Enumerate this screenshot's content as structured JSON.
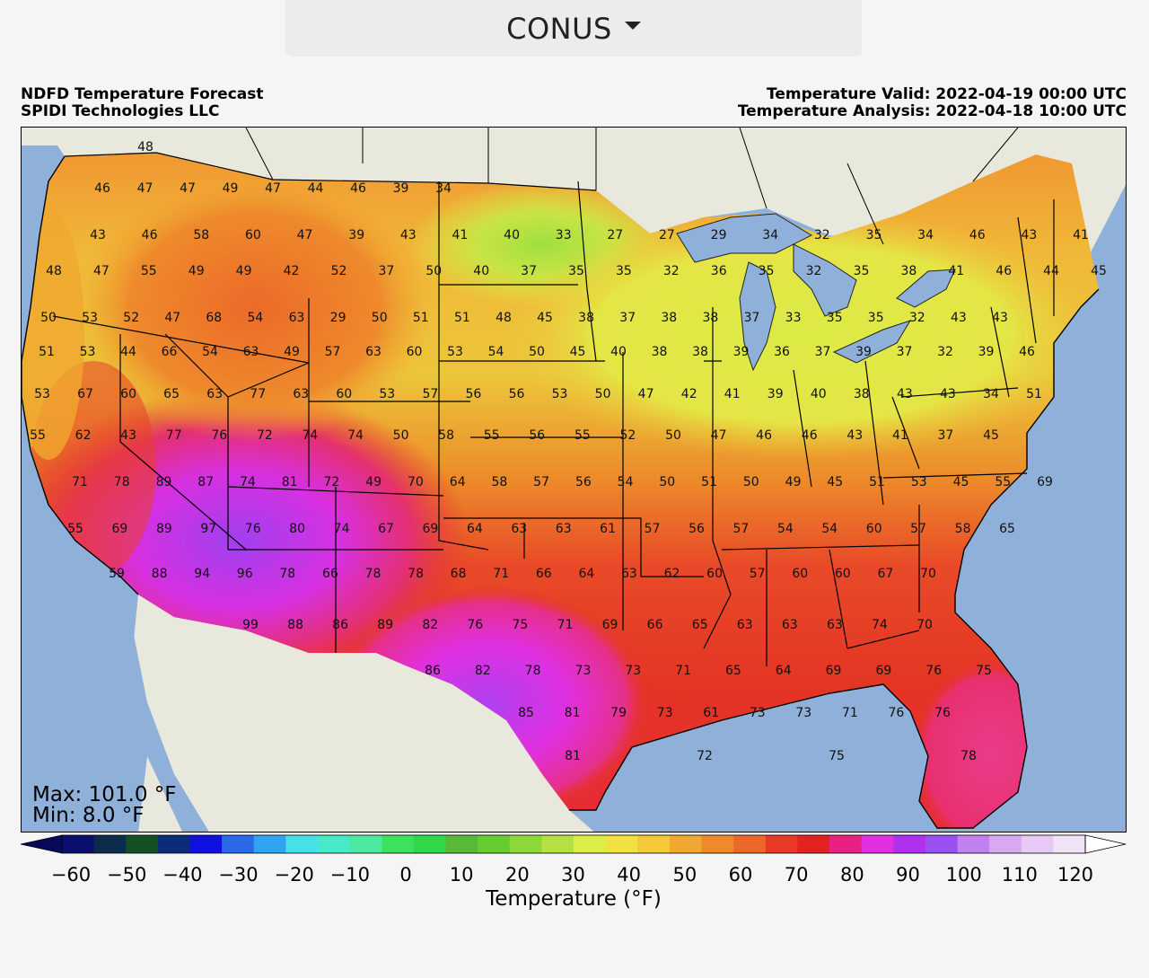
{
  "region_selector": {
    "value": "CONUS",
    "icon": "chevron-down-icon"
  },
  "header": {
    "left_line1": "NDFD Temperature Forecast",
    "left_line2": "SPIDI Technologies LLC",
    "right_line1": "Temperature Valid: 2022-04-19 00:00 UTC",
    "right_line2": "Temperature Analysis: 2022-04-18 10:00 UTC"
  },
  "stats": {
    "max": "Max: 101.0 °F",
    "min": "Min: 8.0 °F"
  },
  "colorbar": {
    "title": "Temperature (°F)",
    "ticks": [
      "−60",
      "−50",
      "−40",
      "−30",
      "−20",
      "−10",
      "0",
      "10",
      "20",
      "30",
      "40",
      "50",
      "60",
      "70",
      "80",
      "90",
      "100",
      "110",
      "120"
    ],
    "colors": [
      "#0a0f6e",
      "#0d2b4a",
      "#145022",
      "#0c2c7a",
      "#1010e0",
      "#2a6ae8",
      "#2fa4f0",
      "#45e0e8",
      "#48e8c8",
      "#4ce8a0",
      "#3ee060",
      "#30d84a",
      "#5ab838",
      "#68cc30",
      "#8cd838",
      "#b4e040",
      "#dcec48",
      "#f2e040",
      "#f4c838",
      "#f0a830",
      "#ee8a2a",
      "#ec6828",
      "#e83a26",
      "#e42222",
      "#e82080",
      "#e030e0",
      "#b030f0",
      "#9a50f0",
      "#c080f0",
      "#d8a8f0",
      "#e8c8f4",
      "#f2e4f8"
    ],
    "under_color": "#060a58",
    "over_color": "#ffffff"
  },
  "colors": {
    "ocean": "#8fb0d8",
    "land_outside": "#e8e8dc",
    "border": "#000000"
  },
  "point_values": [
    "48",
    "46",
    "47",
    "47",
    "49",
    "47",
    "44",
    "46",
    "39",
    "34",
    "43",
    "46",
    "58",
    "60",
    "47",
    "39",
    "43",
    "41",
    "40",
    "33",
    "27",
    "27",
    "29",
    "34",
    "32",
    "35",
    "34",
    "46",
    "43",
    "41",
    "48",
    "47",
    "55",
    "49",
    "49",
    "42",
    "52",
    "37",
    "50",
    "40",
    "37",
    "35",
    "35",
    "32",
    "36",
    "35",
    "32",
    "35",
    "38",
    "41",
    "46",
    "44",
    "45",
    "50",
    "53",
    "52",
    "47",
    "68",
    "54",
    "63",
    "29",
    "50",
    "51",
    "51",
    "48",
    "45",
    "38",
    "37",
    "38",
    "38",
    "37",
    "33",
    "35",
    "35",
    "32",
    "43",
    "43",
    "51",
    "53",
    "44",
    "66",
    "54",
    "63",
    "49",
    "57",
    "63",
    "60",
    "53",
    "54",
    "50",
    "45",
    "40",
    "38",
    "38",
    "39",
    "36",
    "37",
    "39",
    "37",
    "32",
    "39",
    "46",
    "53",
    "67",
    "60",
    "65",
    "63",
    "77",
    "63",
    "60",
    "53",
    "57",
    "56",
    "56",
    "53",
    "50",
    "47",
    "42",
    "41",
    "39",
    "40",
    "38",
    "43",
    "43",
    "34",
    "51",
    "55",
    "62",
    "43",
    "77",
    "76",
    "72",
    "74",
    "74",
    "50",
    "58",
    "55",
    "56",
    "55",
    "52",
    "50",
    "47",
    "46",
    "46",
    "43",
    "41",
    "37",
    "45",
    "71",
    "78",
    "89",
    "87",
    "74",
    "81",
    "72",
    "49",
    "70",
    "64",
    "58",
    "57",
    "56",
    "54",
    "50",
    "51",
    "50",
    "49",
    "45",
    "51",
    "53",
    "45",
    "55",
    "69",
    "55",
    "69",
    "89",
    "97",
    "76",
    "80",
    "74",
    "67",
    "69",
    "64",
    "63",
    "63",
    "61",
    "57",
    "56",
    "57",
    "54",
    "54",
    "60",
    "57",
    "58",
    "65",
    "59",
    "88",
    "94",
    "96",
    "78",
    "66",
    "78",
    "78",
    "68",
    "71",
    "66",
    "64",
    "63",
    "62",
    "60",
    "57",
    "60",
    "60",
    "67",
    "70",
    "99",
    "88",
    "86",
    "89",
    "82",
    "76",
    "75",
    "71",
    "69",
    "66",
    "65",
    "63",
    "63",
    "63",
    "74",
    "70",
    "86",
    "82",
    "78",
    "73",
    "73",
    "71",
    "65",
    "64",
    "69",
    "69",
    "76",
    "75",
    "85",
    "81",
    "79",
    "73",
    "61",
    "73",
    "73",
    "71",
    "76",
    "76",
    "81",
    "72",
    "75",
    "78"
  ]
}
